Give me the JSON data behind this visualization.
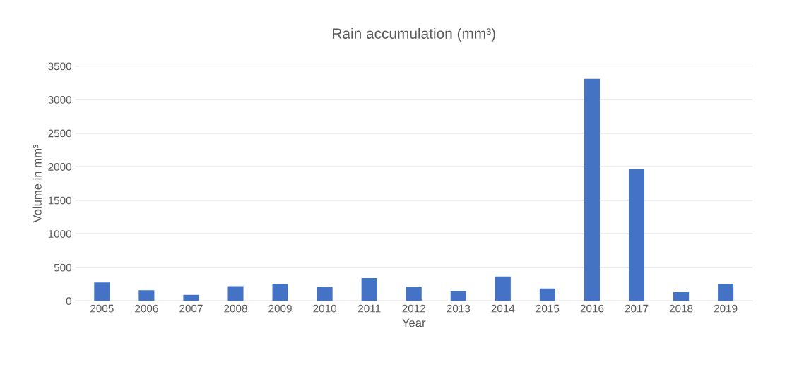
{
  "chart_data": {
    "type": "bar",
    "title": "Rain accumulation (mm³)",
    "xlabel": "Year",
    "ylabel": "Volume in mm³",
    "categories": [
      "2005",
      "2006",
      "2007",
      "2008",
      "2009",
      "2010",
      "2011",
      "2012",
      "2013",
      "2014",
      "2015",
      "2016",
      "2017",
      "2018",
      "2019"
    ],
    "values": [
      275,
      160,
      90,
      220,
      255,
      210,
      340,
      210,
      145,
      365,
      185,
      3310,
      1960,
      130,
      255
    ],
    "color": "#4472c4",
    "ylim": [
      0,
      3500
    ],
    "yticks": [
      0,
      500,
      1000,
      1500,
      2000,
      2500,
      3000,
      3500
    ],
    "grid": "y",
    "legend": false
  }
}
